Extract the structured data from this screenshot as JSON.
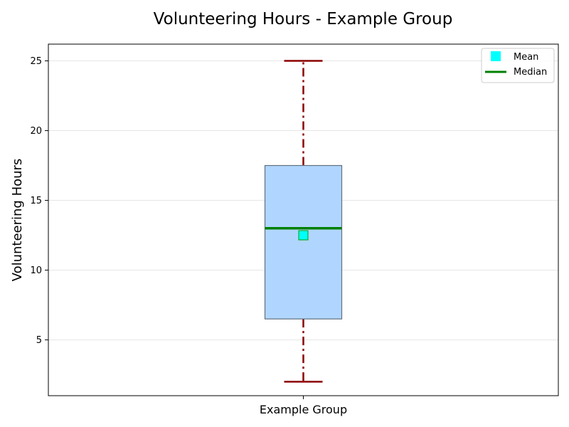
{
  "chart_data": {
    "type": "box",
    "title": "Volunteering Hours - Example Group",
    "xlabel": "",
    "ylabel": "Volunteering Hours",
    "categories": [
      "Example Group"
    ],
    "boxes": [
      {
        "name": "Example Group",
        "whisker_low": 2,
        "q1": 6.5,
        "median": 13,
        "mean": 12.5,
        "q3": 17.5,
        "whisker_high": 25
      }
    ],
    "ylim": [
      1,
      26.2
    ],
    "yticks": [
      5,
      10,
      15,
      20,
      25
    ],
    "grid": true,
    "legend": {
      "placement": "top-right",
      "entries": [
        {
          "label": "Mean",
          "kind": "square-marker",
          "color": "#00ffff"
        },
        {
          "label": "Median",
          "kind": "line",
          "color": "#008000"
        }
      ]
    },
    "colors": {
      "box_fill": "#b0d6ff",
      "box_edge": "#607080",
      "whisker": "#8b0000",
      "median": "#008000",
      "mean_fill": "#00ffff",
      "mean_edge": "#00a000",
      "grid": "#e6e6e6"
    }
  }
}
